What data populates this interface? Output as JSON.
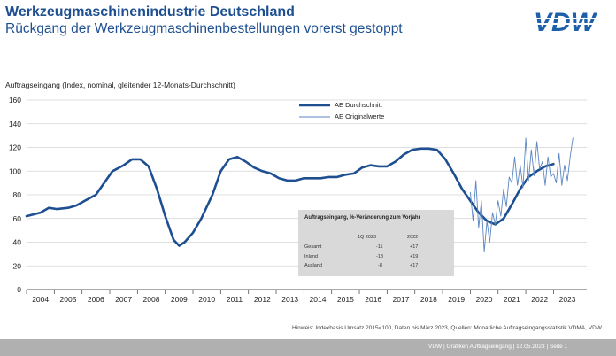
{
  "header": {
    "title": "Werkzeugmaschinenindustrie Deutschland",
    "subtitle": "Rückgang der Werkzeugmaschinenbestellungen vorerst gestoppt",
    "logo_text": "VDW"
  },
  "chart_data": {
    "type": "line",
    "ylabel": "Auftragseingang (Index, nominal, gleitender 12-Monats-Durchschnitt)",
    "ylim": [
      0,
      160
    ],
    "yticks": [
      "0",
      "20",
      "40",
      "60",
      "80",
      "100",
      "120",
      "140",
      "160"
    ],
    "categories": [
      "2004",
      "2005",
      "2006",
      "2007",
      "2008",
      "2009",
      "2010",
      "2011",
      "2012",
      "2013",
      "2014",
      "2015",
      "2016",
      "2017",
      "2018",
      "2019",
      "2020",
      "2021",
      "2022",
      "2023"
    ],
    "grid": true,
    "legend_placement": "top-center",
    "series": [
      {
        "name": "AE Durchschnitt",
        "color": "#1d4f91",
        "x": [
          2003.5,
          2004.0,
          2004.3,
          2004.6,
          2005.0,
          2005.3,
          2005.6,
          2006.0,
          2006.3,
          2006.6,
          2007.0,
          2007.3,
          2007.6,
          2007.9,
          2008.2,
          2008.5,
          2008.8,
          2009.0,
          2009.2,
          2009.5,
          2009.8,
          2010.2,
          2010.5,
          2010.8,
          2011.1,
          2011.4,
          2011.7,
          2012.0,
          2012.3,
          2012.6,
          2012.9,
          2013.2,
          2013.5,
          2013.8,
          2014.1,
          2014.4,
          2014.7,
          2015.0,
          2015.3,
          2015.6,
          2015.9,
          2016.2,
          2016.5,
          2016.8,
          2017.1,
          2017.4,
          2017.7,
          2018.0,
          2018.3,
          2018.6,
          2018.9,
          2019.2,
          2019.5,
          2019.8,
          2020.1,
          2020.4,
          2020.7,
          2021.0,
          2021.3,
          2021.6,
          2021.9,
          2022.2,
          2022.5
        ],
        "values": [
          62,
          65,
          69,
          68,
          69,
          71,
          75,
          80,
          90,
          100,
          105,
          110,
          110,
          104,
          85,
          62,
          42,
          37,
          40,
          48,
          60,
          80,
          100,
          110,
          112,
          108,
          103,
          100,
          98,
          94,
          92,
          92,
          94,
          94,
          94,
          95,
          95,
          97,
          98,
          103,
          105,
          104,
          104,
          108,
          114,
          118,
          119,
          119,
          118,
          110,
          98,
          85,
          75,
          65,
          58,
          55,
          60,
          72,
          85,
          95,
          100,
          104,
          106
        ]
      },
      {
        "name": "AE Originalwerte",
        "color": "#5a86c2",
        "x": [
          2019.5,
          2019.6,
          2019.7,
          2019.8,
          2019.9,
          2020.0,
          2020.1,
          2020.2,
          2020.3,
          2020.4,
          2020.5,
          2020.6,
          2020.7,
          2020.8,
          2020.9,
          2021.0,
          2021.1,
          2021.2,
          2021.3,
          2021.4,
          2021.5,
          2021.6,
          2021.7,
          2021.8,
          2021.9,
          2022.0,
          2022.1,
          2022.2,
          2022.3,
          2022.4,
          2022.5,
          2022.6,
          2022.7,
          2022.8,
          2022.9,
          2023.0,
          2023.1,
          2023.2
        ],
        "values": [
          82,
          58,
          92,
          52,
          75,
          32,
          58,
          40,
          65,
          55,
          75,
          62,
          85,
          70,
          95,
          90,
          112,
          88,
          105,
          86,
          128,
          92,
          118,
          96,
          125,
          102,
          108,
          88,
          112,
          95,
          98,
          90,
          115,
          88,
          105,
          92,
          112,
          128
        ]
      }
    ],
    "annotation_table": {
      "title": "Auftragseingang, %-Veränderung zum Vorjahr",
      "columns": [
        "1Q 2023",
        "2022"
      ],
      "rows": [
        {
          "label": "Gesamt",
          "values": [
            "-11",
            "+17"
          ]
        },
        {
          "label": "Inland",
          "values": [
            "-18",
            "+19"
          ]
        },
        {
          "label": "Ausland",
          "values": [
            "-8",
            "+17"
          ]
        }
      ]
    }
  },
  "footnote": "Hinweis: Indexbasis Umsatz 2015=100, Daten bis März 2023, Quellen: Monatliche Auftragseingangsstatistik VDMA, VDW",
  "footer": "VDW  |  Grafiken Auftragseingang  |  12.05.2023  |  Seite 1"
}
